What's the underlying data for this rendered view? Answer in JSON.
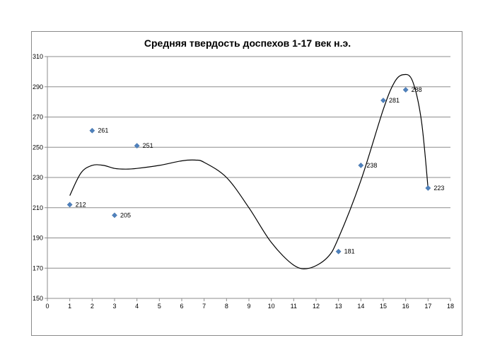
{
  "chart_data": {
    "type": "scatter",
    "title": "Средняя твердость доспехов 1-17 век н.э.",
    "xlabel": "",
    "ylabel": "",
    "xlim": [
      0,
      18
    ],
    "ylim": [
      150,
      310
    ],
    "x_ticks": [
      0,
      1,
      2,
      3,
      4,
      5,
      6,
      7,
      8,
      9,
      10,
      11,
      12,
      13,
      14,
      15,
      16,
      17,
      18
    ],
    "y_ticks": [
      150,
      170,
      190,
      210,
      230,
      250,
      270,
      290,
      310
    ],
    "grid": "horizontal",
    "legend": "none",
    "marker_color": "#4f81bd",
    "trend_color": "#000000",
    "series": [
      {
        "points": [
          {
            "x": 1,
            "y": 212,
            "label": "212"
          },
          {
            "x": 2,
            "y": 261,
            "label": "261"
          },
          {
            "x": 3,
            "y": 205,
            "label": "205"
          },
          {
            "x": 4,
            "y": 251,
            "label": "251"
          },
          {
            "x": 13,
            "y": 181,
            "label": "181"
          },
          {
            "x": 14,
            "y": 238,
            "label": "238"
          },
          {
            "x": 15,
            "y": 281,
            "label": "281"
          },
          {
            "x": 16,
            "y": 288,
            "label": "288"
          },
          {
            "x": 17,
            "y": 223,
            "label": "223"
          }
        ]
      }
    ],
    "trendline": [
      [
        1,
        218
      ],
      [
        1.5,
        233
      ],
      [
        2,
        238
      ],
      [
        2.5,
        238
      ],
      [
        3,
        236
      ],
      [
        3.5,
        235.5
      ],
      [
        4,
        236
      ],
      [
        5,
        238
      ],
      [
        6,
        241
      ],
      [
        6.6,
        241.5
      ],
      [
        7,
        240
      ],
      [
        8,
        230
      ],
      [
        9,
        210
      ],
      [
        10,
        187
      ],
      [
        11,
        172
      ],
      [
        11.7,
        170
      ],
      [
        12.5,
        177
      ],
      [
        13,
        190
      ],
      [
        14,
        228
      ],
      [
        15,
        275
      ],
      [
        15.5,
        293
      ],
      [
        15.9,
        298
      ],
      [
        16.3,
        294
      ],
      [
        16.7,
        268
      ],
      [
        17,
        223
      ]
    ]
  }
}
